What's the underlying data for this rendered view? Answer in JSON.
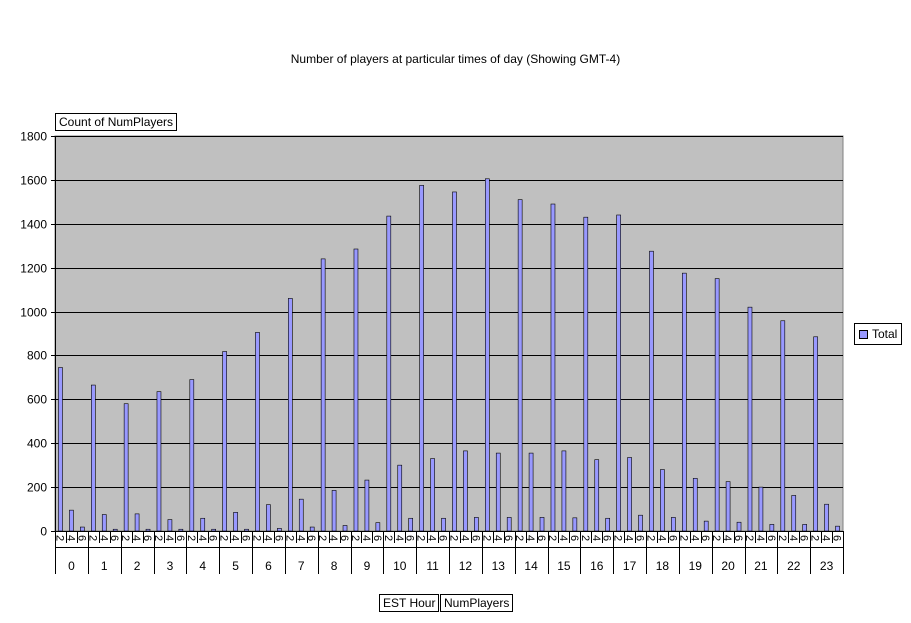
{
  "chart_data": {
    "type": "bar",
    "title": "Number of players at particular times of day (Showing GMT-4)",
    "data_field_label": "Count of NumPlayers",
    "row_field_labels": [
      "EST Hour",
      "NumPlayers"
    ],
    "legend": [
      "Total"
    ],
    "legend_position": "right",
    "ylim": [
      0,
      1800
    ],
    "yticks": [
      0,
      200,
      400,
      600,
      800,
      1000,
      1200,
      1400,
      1600,
      1800
    ],
    "grid": true,
    "groups": [
      "0",
      "1",
      "2",
      "3",
      "4",
      "5",
      "6",
      "7",
      "8",
      "9",
      "10",
      "11",
      "12",
      "13",
      "14",
      "15",
      "16",
      "17",
      "18",
      "19",
      "20",
      "21",
      "22",
      "23"
    ],
    "subcategories": [
      "2",
      "4",
      "6"
    ],
    "series": [
      {
        "name": "Total",
        "color": "#9999ff",
        "values": [
          745,
          95,
          18,
          665,
          75,
          8,
          580,
          78,
          8,
          635,
          52,
          8,
          690,
          58,
          8,
          818,
          85,
          8,
          905,
          120,
          12,
          1060,
          145,
          18,
          1240,
          185,
          25,
          1285,
          232,
          38,
          1435,
          300,
          58,
          1575,
          330,
          58,
          1545,
          365,
          62,
          1605,
          355,
          62,
          1510,
          355,
          62,
          1490,
          365,
          60,
          1430,
          325,
          58,
          1440,
          335,
          72,
          1275,
          280,
          62,
          1175,
          240,
          45,
          1150,
          225,
          40,
          1020,
          200,
          30,
          958,
          162,
          30,
          885,
          122,
          22
        ]
      }
    ]
  }
}
